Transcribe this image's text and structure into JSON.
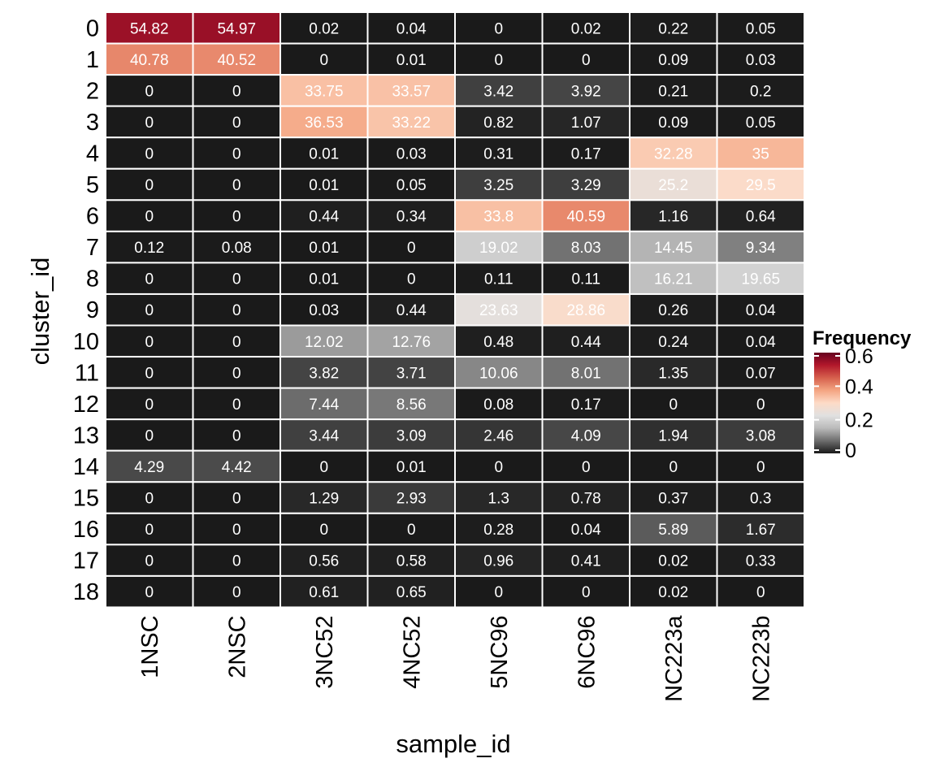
{
  "chart_data": {
    "type": "heatmap",
    "xlabel": "sample_id",
    "ylabel": "cluster_id",
    "x": [
      "1NSC",
      "2NSC",
      "3NC52",
      "4NC52",
      "5NC96",
      "6NC96",
      "NC223a",
      "NC223b"
    ],
    "y": [
      "0",
      "1",
      "2",
      "3",
      "4",
      "5",
      "6",
      "7",
      "8",
      "9",
      "10",
      "11",
      "12",
      "13",
      "14",
      "15",
      "16",
      "17",
      "18"
    ],
    "values": [
      [
        "54.82",
        "54.97",
        "0.02",
        "0.04",
        "0",
        "0.02",
        "0.22",
        "0.05"
      ],
      [
        "40.78",
        "40.52",
        "0",
        "0.01",
        "0",
        "0",
        "0.09",
        "0.03"
      ],
      [
        "0",
        "0",
        "33.75",
        "33.57",
        "3.42",
        "3.92",
        "0.21",
        "0.2"
      ],
      [
        "0",
        "0",
        "36.53",
        "33.22",
        "0.82",
        "1.07",
        "0.09",
        "0.05"
      ],
      [
        "0",
        "0",
        "0.01",
        "0.03",
        "0.31",
        "0.17",
        "32.28",
        "35"
      ],
      [
        "0",
        "0",
        "0.01",
        "0.05",
        "3.25",
        "3.29",
        "25.2",
        "29.5"
      ],
      [
        "0",
        "0",
        "0.44",
        "0.34",
        "33.8",
        "40.59",
        "1.16",
        "0.64"
      ],
      [
        "0.12",
        "0.08",
        "0.01",
        "0",
        "19.02",
        "8.03",
        "14.45",
        "9.34"
      ],
      [
        "0",
        "0",
        "0.01",
        "0",
        "0.11",
        "0.11",
        "16.21",
        "19.65"
      ],
      [
        "0",
        "0",
        "0.03",
        "0.44",
        "23.63",
        "28.86",
        "0.26",
        "0.04"
      ],
      [
        "0",
        "0",
        "12.02",
        "12.76",
        "0.48",
        "0.44",
        "0.24",
        "0.04"
      ],
      [
        "0",
        "0",
        "3.82",
        "3.71",
        "10.06",
        "8.01",
        "1.35",
        "0.07"
      ],
      [
        "0",
        "0",
        "7.44",
        "8.56",
        "0.08",
        "0.17",
        "0",
        "0"
      ],
      [
        "0",
        "0",
        "3.44",
        "3.09",
        "2.46",
        "4.09",
        "1.94",
        "3.08"
      ],
      [
        "4.29",
        "4.42",
        "0",
        "0.01",
        "0",
        "0",
        "0",
        "0"
      ],
      [
        "0",
        "0",
        "1.29",
        "2.93",
        "1.3",
        "0.78",
        "0.37",
        "0.3"
      ],
      [
        "0",
        "0",
        "0",
        "0",
        "0.28",
        "0.04",
        "5.89",
        "1.67"
      ],
      [
        "0",
        "0",
        "0.56",
        "0.58",
        "0.96",
        "0.41",
        "0.02",
        "0.33"
      ],
      [
        "0",
        "0",
        "0.61",
        "0.65",
        "0",
        "0",
        "0.02",
        "0"
      ]
    ],
    "value_unit": "percent",
    "legend": {
      "title": "Frequency",
      "ticks": [
        "0",
        "0.2",
        "0.4",
        "0.6"
      ],
      "range": [
        0,
        0.6
      ],
      "placement": "right"
    },
    "color_scale": [
      "#1a1a1a",
      "#6d6d6d",
      "#bababa",
      "#e0e0e0",
      "#fddbc7",
      "#f4a582",
      "#d6604d",
      "#b2182b",
      "#67001f"
    ],
    "grid": false
  }
}
